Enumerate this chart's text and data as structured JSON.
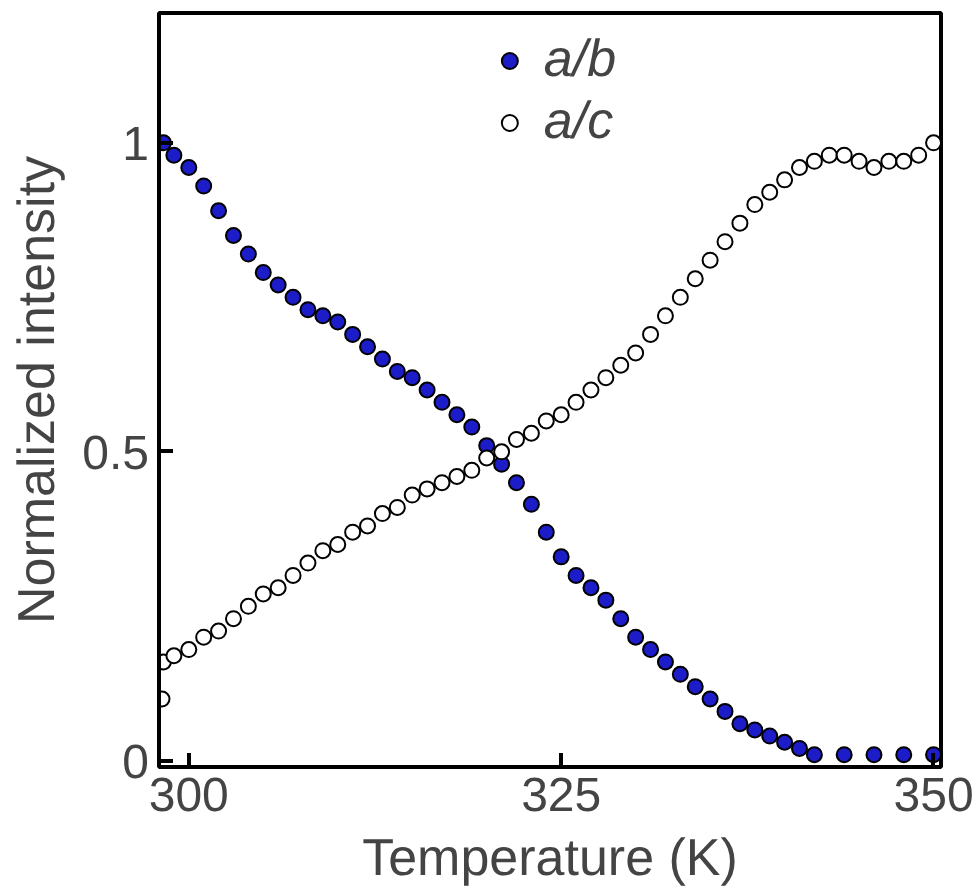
{
  "chart_data": {
    "type": "scatter",
    "xlabel": "Temperature (K)",
    "ylabel": "Normalized intensity",
    "xlim": [
      298,
      350.5
    ],
    "ylim": [
      -0.01,
      1.21
    ],
    "xticks": [
      300,
      325,
      350
    ],
    "yticks": [
      0,
      0.5,
      1
    ],
    "grid": false,
    "legend": "top",
    "marker": "circle",
    "series": [
      {
        "name": "a/b",
        "color": "#1c1cc8",
        "x": [
          298.3,
          299,
          300,
          301,
          302,
          303,
          304,
          305,
          306,
          307,
          308,
          309,
          310,
          311,
          312,
          313,
          314,
          315,
          316,
          317,
          318,
          319,
          320,
          321,
          322,
          323,
          324,
          325,
          326,
          327,
          328,
          329,
          330,
          331,
          332,
          333,
          334,
          335,
          336,
          337,
          338,
          339,
          340,
          341,
          342,
          344,
          346,
          348,
          350
        ],
        "values": [
          1.0,
          0.98,
          0.96,
          0.93,
          0.89,
          0.85,
          0.82,
          0.79,
          0.77,
          0.75,
          0.73,
          0.72,
          0.71,
          0.69,
          0.67,
          0.65,
          0.63,
          0.62,
          0.6,
          0.58,
          0.56,
          0.54,
          0.51,
          0.48,
          0.45,
          0.415,
          0.37,
          0.33,
          0.3,
          0.28,
          0.26,
          0.23,
          0.2,
          0.18,
          0.16,
          0.14,
          0.12,
          0.1,
          0.08,
          0.06,
          0.05,
          0.04,
          0.03,
          0.02,
          0.01,
          0.01,
          0.01,
          0.01,
          0.01
        ]
      },
      {
        "name": "a/c",
        "color": "#ffffff",
        "x": [
          298.2,
          298.3,
          299,
          300,
          301,
          302,
          303,
          304,
          305,
          306,
          307,
          308,
          309,
          310,
          311,
          312,
          313,
          314,
          315,
          316,
          317,
          318,
          319,
          320,
          321,
          322,
          323,
          324,
          325,
          326,
          327,
          328,
          329,
          330,
          331,
          332,
          333,
          334,
          335,
          336,
          337,
          338,
          339,
          340,
          341,
          342,
          343,
          344,
          345,
          346,
          347,
          348,
          349,
          350
        ],
        "values": [
          0.1,
          0.16,
          0.17,
          0.18,
          0.2,
          0.21,
          0.23,
          0.25,
          0.27,
          0.28,
          0.3,
          0.32,
          0.34,
          0.35,
          0.37,
          0.38,
          0.4,
          0.41,
          0.43,
          0.44,
          0.45,
          0.46,
          0.47,
          0.49,
          0.5,
          0.52,
          0.53,
          0.55,
          0.56,
          0.58,
          0.6,
          0.62,
          0.64,
          0.66,
          0.69,
          0.72,
          0.75,
          0.78,
          0.81,
          0.84,
          0.87,
          0.9,
          0.92,
          0.94,
          0.96,
          0.97,
          0.98,
          0.98,
          0.97,
          0.96,
          0.97,
          0.97,
          0.98,
          1.0
        ]
      }
    ]
  }
}
